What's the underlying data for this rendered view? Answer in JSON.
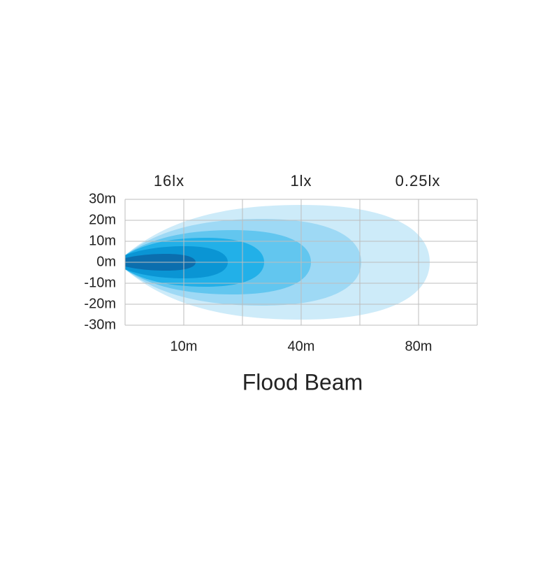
{
  "lux_labels": [
    "16lx",
    "1lx",
    "0.25lx"
  ],
  "y_labels": [
    "30m",
    "20m",
    "10m",
    "0m",
    "-10m",
    "-20m",
    "-30m"
  ],
  "x_labels": [
    "10m",
    "40m",
    "80m"
  ],
  "title": "Flood Beam"
}
